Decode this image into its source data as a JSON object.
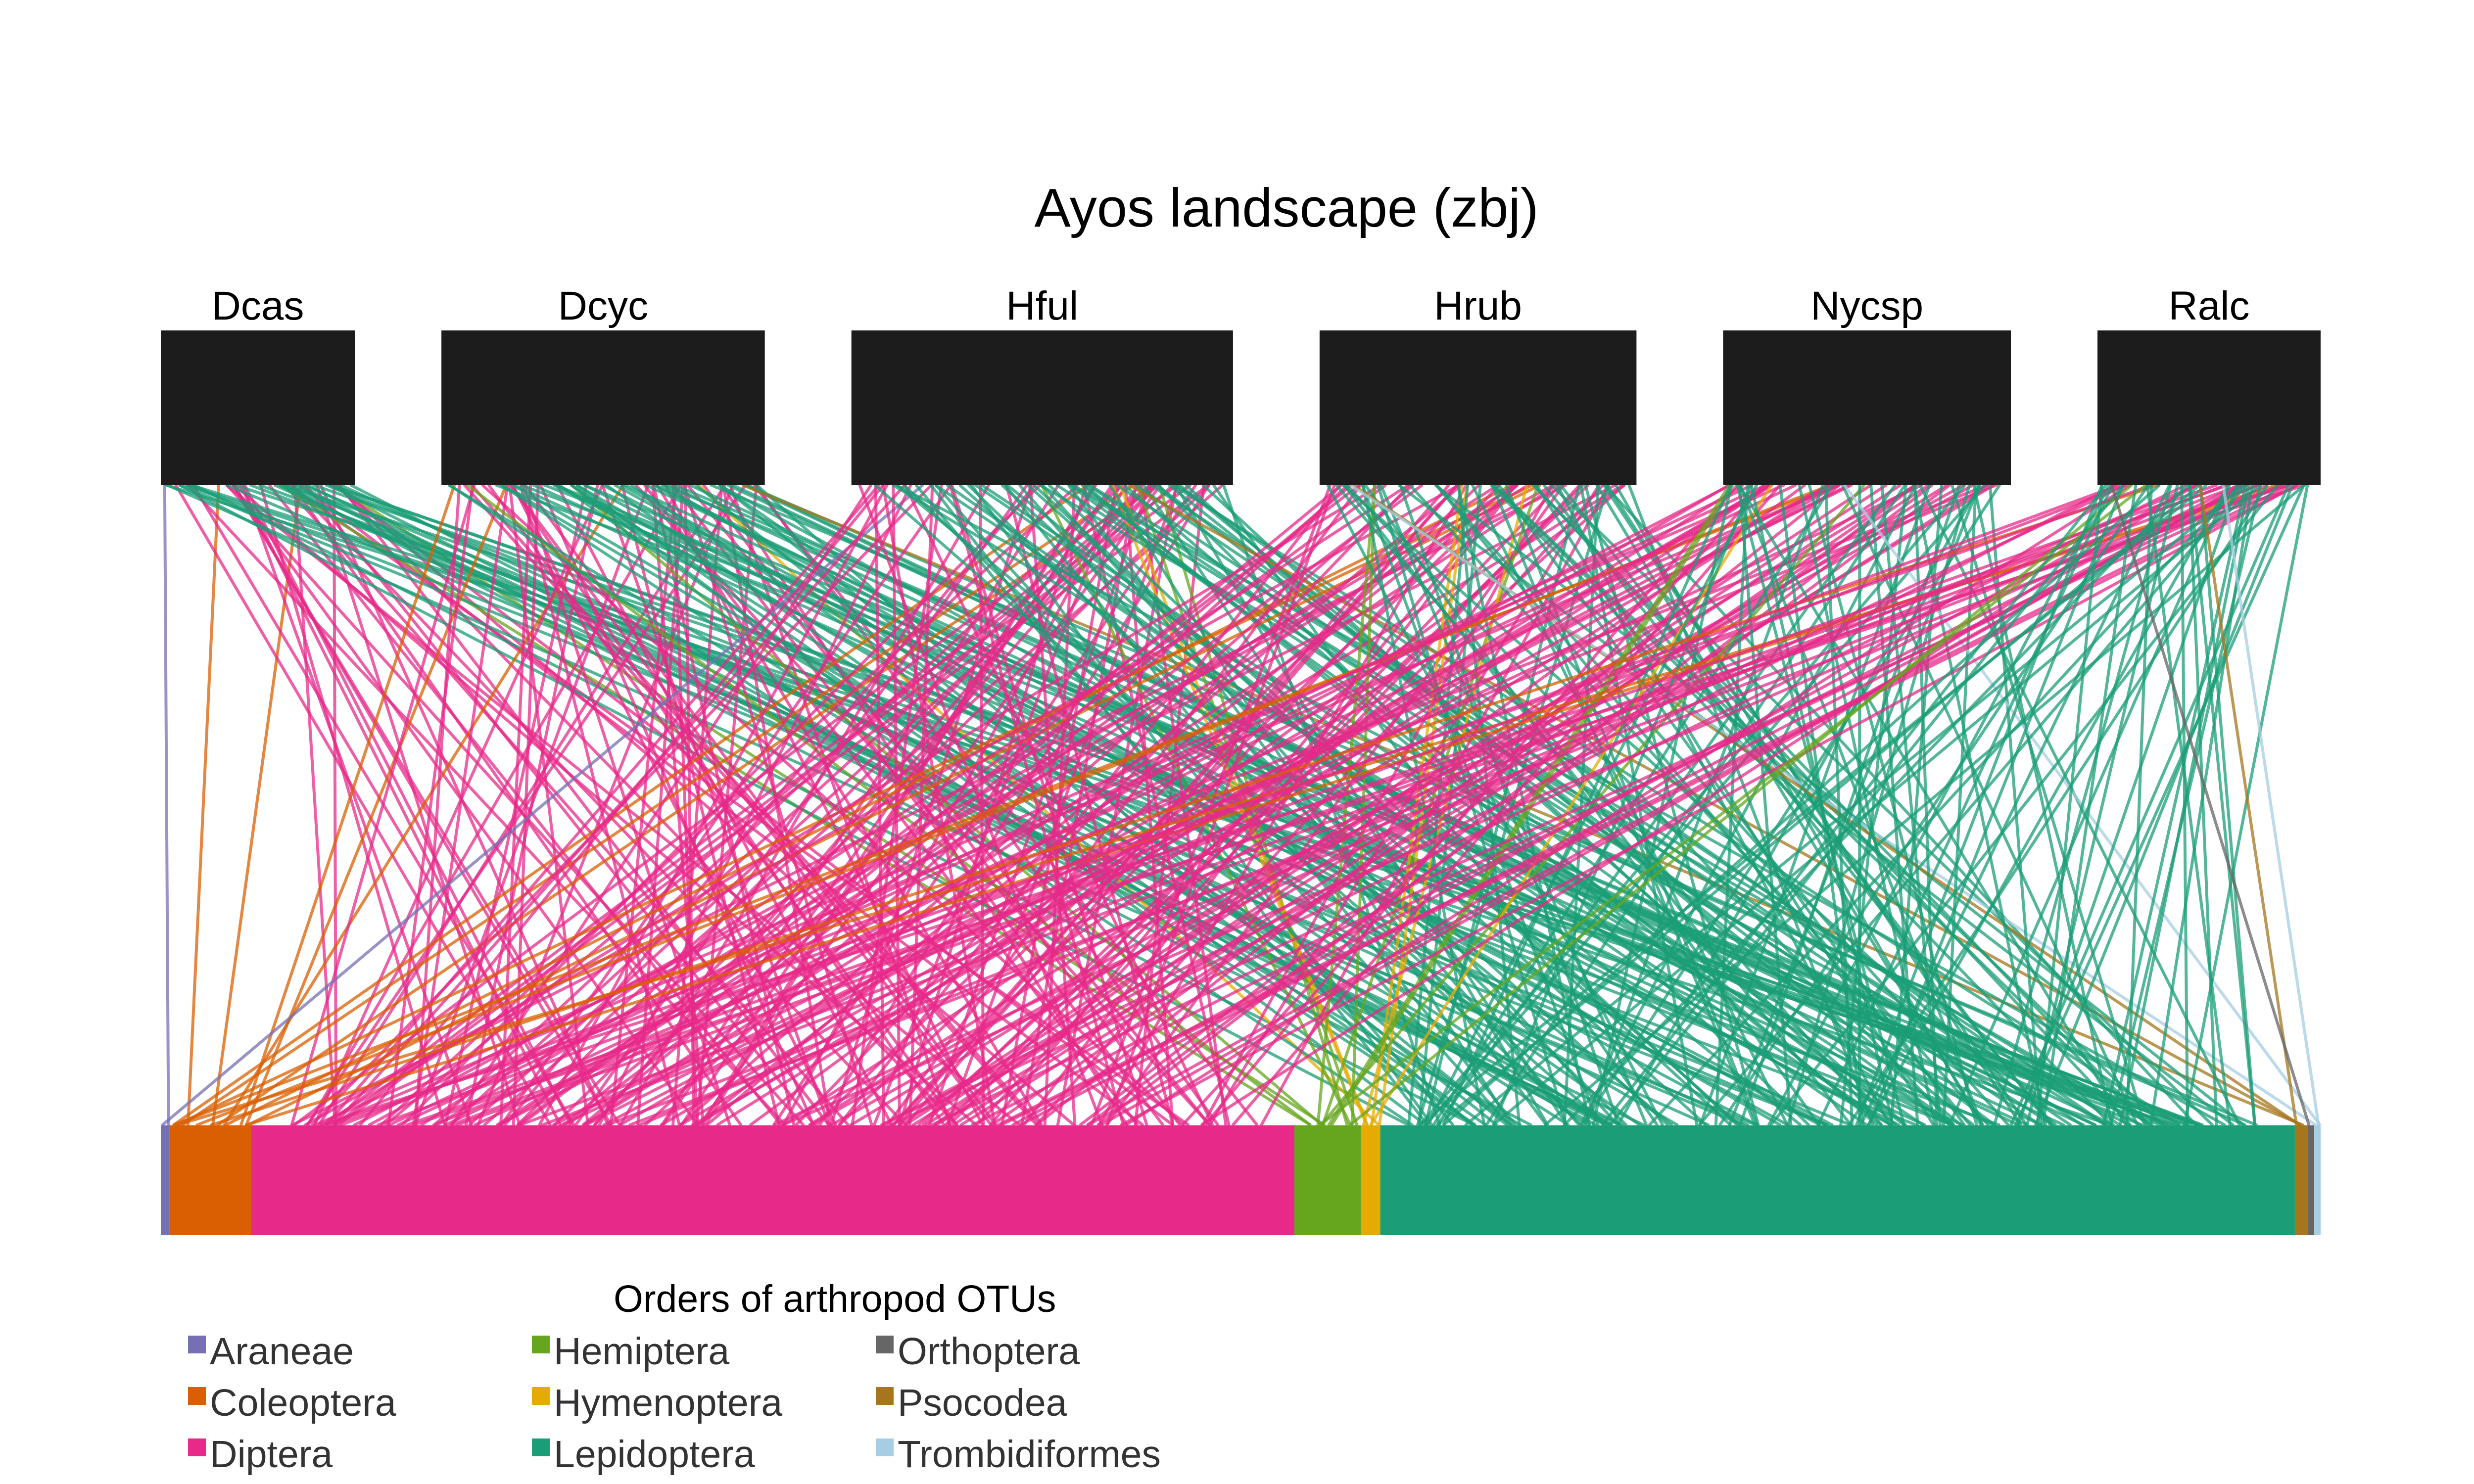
{
  "chart_data": {
    "type": "bipartite",
    "title": "Ayos landscape (zbj)",
    "top_nodes": [
      {
        "name": "Dcas",
        "weight": 0.6
      },
      {
        "name": "Dcyc",
        "weight": 1.0
      },
      {
        "name": "Hful",
        "weight": 1.18
      },
      {
        "name": "Hrub",
        "weight": 0.98
      },
      {
        "name": "Nycsp",
        "weight": 0.89
      },
      {
        "name": "Ralc",
        "weight": 0.69
      }
    ],
    "bottom_segments": [
      {
        "order": "Araneae",
        "weight": 0.4
      },
      {
        "order": "Coleoptera",
        "weight": 3.8
      },
      {
        "order": "Diptera",
        "weight": 48.6
      },
      {
        "order": "Hemiptera",
        "weight": 3.1
      },
      {
        "order": "Hymenoptera",
        "weight": 0.9
      },
      {
        "order": "Lepidoptera",
        "weight": 42.6
      },
      {
        "order": "Psocodea",
        "weight": 0.6
      },
      {
        "order": "Orthoptera",
        "weight": 0.3
      },
      {
        "order": "Trombidiformes",
        "weight": 0.3
      }
    ],
    "links_per_host": {
      "Dcas": {
        "Araneae": 1,
        "Coleoptera": 2,
        "Diptera": 28,
        "Hemiptera": 2,
        "Hymenoptera": 0,
        "Lepidoptera": 28,
        "Psocodea": 0,
        "Orthoptera": 0,
        "Trombidiformes": 0
      },
      "Dcyc": {
        "Araneae": 0,
        "Coleoptera": 3,
        "Diptera": 50,
        "Hemiptera": 2,
        "Hymenoptera": 1,
        "Lepidoptera": 45,
        "Psocodea": 1,
        "Orthoptera": 0,
        "Trombidiformes": 0
      },
      "Hful": {
        "Araneae": 1,
        "Coleoptera": 3,
        "Diptera": 60,
        "Hemiptera": 3,
        "Hymenoptera": 2,
        "Lepidoptera": 50,
        "Psocodea": 1,
        "Orthoptera": 0,
        "Trombidiformes": 0
      },
      "Hrub": {
        "Araneae": 0,
        "Coleoptera": 3,
        "Diptera": 45,
        "Hemiptera": 3,
        "Hymenoptera": 3,
        "Lepidoptera": 45,
        "Psocodea": 1,
        "Orthoptera": 0,
        "Trombidiformes": 1
      },
      "Nycsp": {
        "Araneae": 0,
        "Coleoptera": 2,
        "Diptera": 40,
        "Hemiptera": 3,
        "Hymenoptera": 1,
        "Lepidoptera": 40,
        "Psocodea": 0,
        "Orthoptera": 0,
        "Trombidiformes": 1
      },
      "Ralc": {
        "Araneae": 0,
        "Coleoptera": 3,
        "Diptera": 28,
        "Hemiptera": 2,
        "Hymenoptera": 0,
        "Lepidoptera": 40,
        "Psocodea": 1,
        "Orthoptera": 1,
        "Trombidiformes": 1
      }
    },
    "node_color": "#1c1c1c",
    "legend": {
      "title": "Orders of arthropod OTUs",
      "columns": 3,
      "items": [
        {
          "label": "Araneae",
          "color": "#7570b3"
        },
        {
          "label": "Coleoptera",
          "color": "#d95f02"
        },
        {
          "label": "Diptera",
          "color": "#e7298a"
        },
        {
          "label": "Hemiptera",
          "color": "#66a61e"
        },
        {
          "label": "Hymenoptera",
          "color": "#e6ab02"
        },
        {
          "label": "Lepidoptera",
          "color": "#1b9e77"
        },
        {
          "label": "Orthoptera",
          "color": "#666666"
        },
        {
          "label": "Psocodea",
          "color": "#a6761d"
        },
        {
          "label": "Trombidiformes",
          "color": "#a6cee3"
        }
      ]
    }
  }
}
